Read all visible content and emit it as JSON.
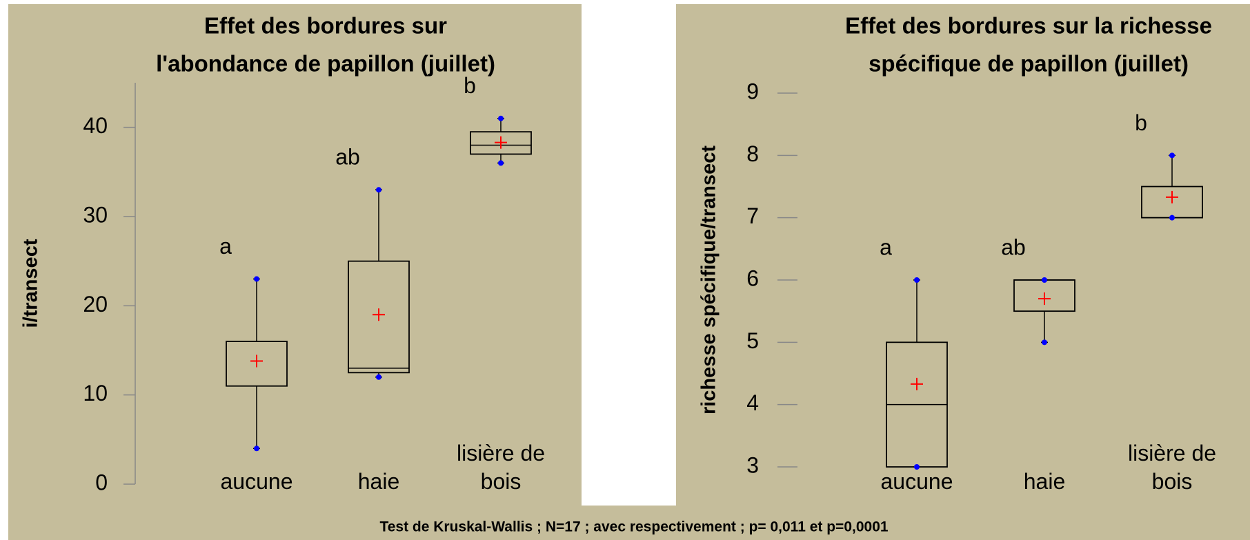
{
  "charts": [
    {
      "type": "box",
      "title": [
        "Effet des bordures sur",
        "l'abondance de papillon (juillet)"
      ],
      "ylabel": "i/transect",
      "categories": [
        "aucune",
        "haie",
        "lisière de bois"
      ],
      "boxes": [
        {
          "min": 4,
          "q1": 11,
          "median": 11,
          "q3": 16,
          "max": 23,
          "mean": 13.8
        },
        {
          "min": 12,
          "q1": 12.5,
          "median": 13,
          "q3": 25,
          "max": 33,
          "mean": 19
        },
        {
          "min": 36,
          "q1": 37,
          "median": 38,
          "q3": 39.5,
          "max": 41,
          "mean": 38.3
        }
      ],
      "annotations": [
        "a",
        "ab",
        "b"
      ],
      "ylim": [
        0,
        45
      ],
      "yticks": [
        0,
        10,
        20,
        30,
        40
      ],
      "box_color": "#000000",
      "mean_color": "#ff0000",
      "point_color": "#0000ff"
    },
    {
      "type": "box",
      "title": [
        "Effet des bordures sur la richesse",
        "spécifique de papillon (juillet)"
      ],
      "ylabel": "richesse spécifique/transect",
      "categories": [
        "aucune",
        "haie",
        "lisière de bois"
      ],
      "boxes": [
        {
          "min": 3,
          "q1": 3,
          "median": 4,
          "q3": 5,
          "max": 6,
          "mean": 4.33
        },
        {
          "min": 5,
          "q1": 5.5,
          "median": 6,
          "q3": 6,
          "max": 6,
          "mean": 5.7
        },
        {
          "min": 7,
          "q1": 7,
          "median": 7,
          "q3": 7.5,
          "max": 8,
          "mean": 7.33
        }
      ],
      "annotations": [
        "a",
        "ab",
        "b"
      ],
      "ylim": [
        3,
        9
      ],
      "yticks": [
        3,
        4,
        5,
        6,
        7,
        8,
        9
      ],
      "box_color": "#000000",
      "mean_color": "#ff0000",
      "point_color": "#0000ff"
    }
  ],
  "footer": "Test de Kruskal-Wallis ; N=17 ; avec respectivement ; p= 0,011 et p=0,0001"
}
